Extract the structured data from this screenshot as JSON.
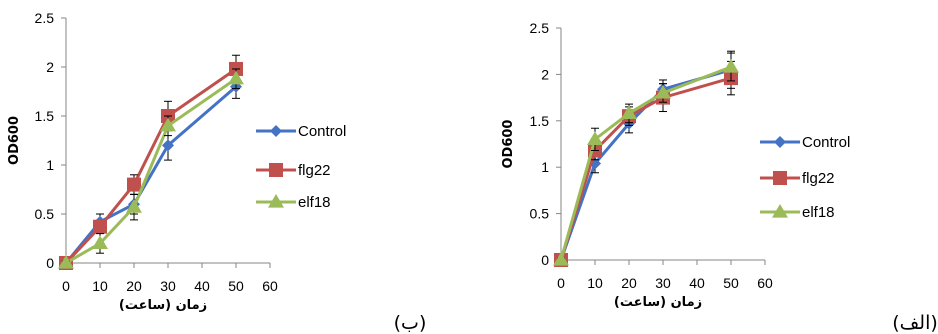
{
  "colors": {
    "Control": "#4472c4",
    "flg22": "#c0504d",
    "elf18": "#9bbb59",
    "axis": "#868686"
  },
  "chart_data": [
    {
      "type": "line",
      "panel_label": "(ب)",
      "xlabel": "زمان (ساعت)",
      "ylabel": "OD600",
      "xlim": [
        0,
        60
      ],
      "ylim": [
        0,
        2.5
      ],
      "x_ticks": [
        "0",
        "10",
        "20",
        "30",
        "40",
        "50",
        "60"
      ],
      "y_ticks": [
        "0",
        "0.5",
        "1",
        "1.5",
        "2",
        "2.5"
      ],
      "legend": "right",
      "grid": false,
      "x": [
        0,
        10,
        20,
        30,
        50
      ],
      "series": [
        {
          "name": "Control",
          "marker": "diamond",
          "values": [
            0,
            0.42,
            0.6,
            1.2,
            1.8
          ],
          "errors": [
            0.02,
            0.08,
            0.1,
            0.15,
            0.12
          ]
        },
        {
          "name": "flg22",
          "marker": "square",
          "values": [
            0,
            0.37,
            0.8,
            1.5,
            1.98
          ],
          "errors": [
            0.02,
            0.06,
            0.1,
            0.15,
            0.14
          ]
        },
        {
          "name": "elf18",
          "marker": "triangle",
          "values": [
            0,
            0.2,
            0.57,
            1.4,
            1.88
          ],
          "errors": [
            0.02,
            0.1,
            0.13,
            0.1,
            0.1
          ]
        }
      ]
    },
    {
      "type": "line",
      "panel_label": "(الف)",
      "xlabel": "زمان (ساعت)",
      "ylabel": "OD600",
      "xlim": [
        0,
        60
      ],
      "ylim": [
        0,
        2.5
      ],
      "x_ticks": [
        "0",
        "10",
        "20",
        "30",
        "40",
        "50",
        "60"
      ],
      "y_ticks": [
        "0",
        "0.5",
        "1",
        "1.5",
        "2",
        "2.5"
      ],
      "legend": "right",
      "grid": false,
      "x": [
        0,
        10,
        20,
        30,
        50
      ],
      "series": [
        {
          "name": "Control",
          "marker": "diamond",
          "values": [
            0,
            1.04,
            1.47,
            1.84,
            2.05
          ],
          "errors": [
            0.02,
            0.1,
            0.1,
            0.1,
            0.2
          ]
        },
        {
          "name": "flg22",
          "marker": "square",
          "values": [
            0,
            1.18,
            1.55,
            1.75,
            1.96
          ],
          "errors": [
            0.02,
            0.1,
            0.1,
            0.15,
            0.18
          ]
        },
        {
          "name": "elf18",
          "marker": "triangle",
          "values": [
            0,
            1.3,
            1.58,
            1.8,
            2.08
          ],
          "errors": [
            0.02,
            0.12,
            0.1,
            0.1,
            0.15
          ]
        }
      ]
    }
  ]
}
